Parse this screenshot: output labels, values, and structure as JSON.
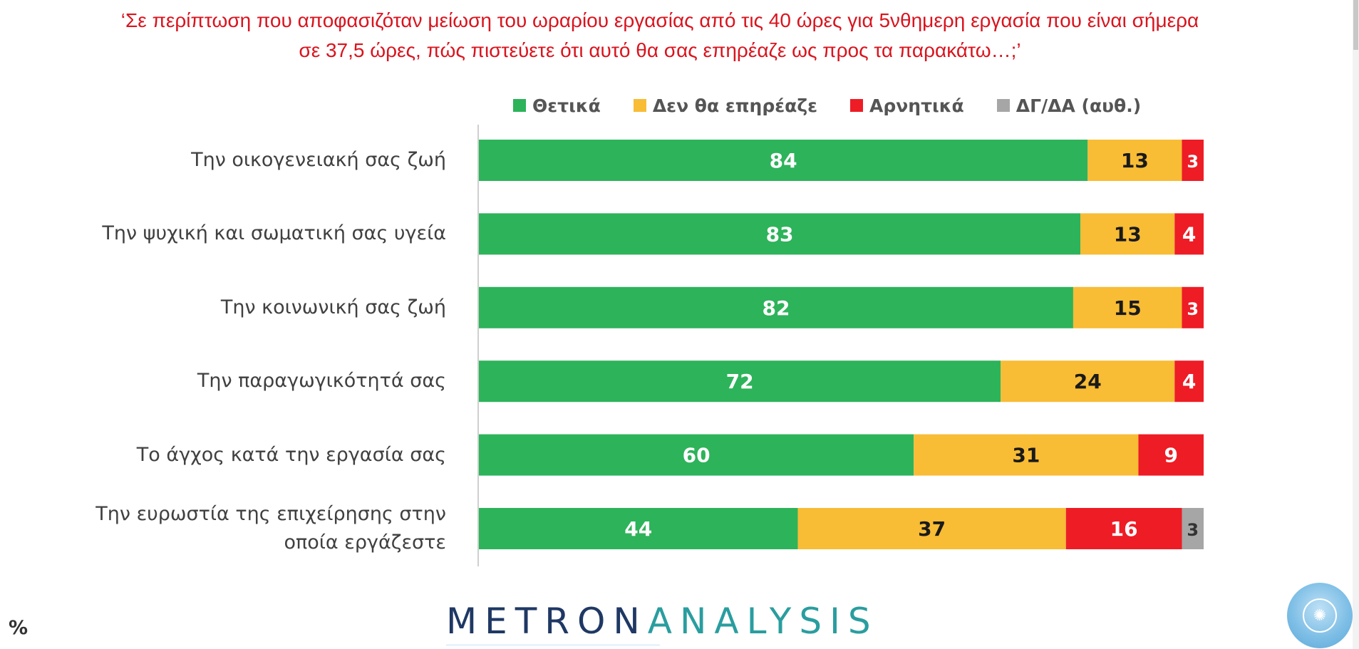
{
  "chart_data": {
    "type": "bar",
    "orientation": "horizontal",
    "stacked": true,
    "title": "‘Σε περίπτωση που αποφασιζόταν μείωση του ωραρίου εργασίας από τις 40 ώρες για 5νθημερη εργασία που είναι σήμερα σε 37,5 ώρες, πώς πιστεύετε ότι αυτό θα σας επηρέαζε ως προς τα παρακάτω…;’",
    "title_lines": [
      "‘Σε περίπτωση που αποφασιζόταν μείωση του ωραρίου εργασίας από τις 40 ώρες για 5νθημερη εργασία που είναι σήμερα",
      "σε 37,5 ώρες, πώς πιστεύετε ότι αυτό θα σας επηρέαζε ως προς τα παρακάτω…;’"
    ],
    "unit_label": "%",
    "xlim": [
      0,
      100
    ],
    "legend_position": "top",
    "categories": [
      [
        "Την οικογενειακή σας ζωή"
      ],
      [
        "Την ψυχική και σωματική σας υγεία"
      ],
      [
        "Την κοινωνική σας ζωή"
      ],
      [
        "Την παραγωγικότητά σας"
      ],
      [
        "Το άγχος κατά την εργασία σας"
      ],
      [
        "Την ευρωστία της επιχείρησης στην",
        "οποία εργάζεστε"
      ]
    ],
    "series": [
      {
        "name": "Θετικά",
        "color": "#2db35a",
        "label_color": "#ffffff",
        "values": [
          84,
          83,
          82,
          72,
          60,
          44
        ]
      },
      {
        "name": "Δεν θα επηρέαζε",
        "color": "#f8bc35",
        "label_color": "#1a1a1a",
        "values": [
          13,
          13,
          15,
          24,
          31,
          37
        ]
      },
      {
        "name": "Αρνητικά",
        "color": "#ee1c25",
        "label_color": "#ffffff",
        "values": [
          3,
          4,
          3,
          4,
          9,
          16
        ]
      },
      {
        "name": "ΔΓ/ΔΑ (αυθ.)",
        "color": "#a6a6a6",
        "label_color": "#333333",
        "values": [
          0,
          0,
          0,
          0,
          0,
          3
        ]
      }
    ]
  },
  "brand": {
    "word1": "METRON",
    "word2": "ANALYSIS"
  }
}
